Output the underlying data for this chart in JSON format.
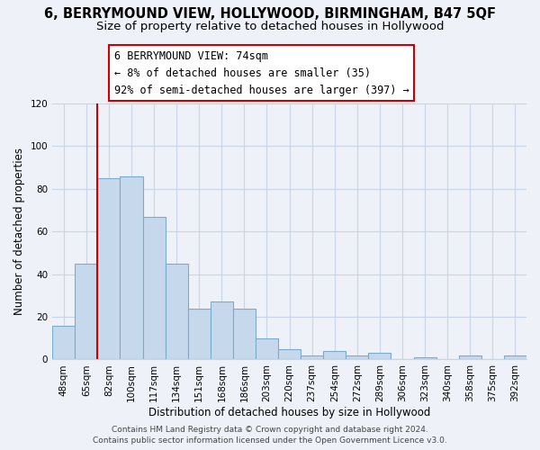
{
  "title": "6, BERRYMOUND VIEW, HOLLYWOOD, BIRMINGHAM, B47 5QF",
  "subtitle": "Size of property relative to detached houses in Hollywood",
  "xlabel": "Distribution of detached houses by size in Hollywood",
  "ylabel": "Number of detached properties",
  "categories": [
    "48sqm",
    "65sqm",
    "82sqm",
    "100sqm",
    "117sqm",
    "134sqm",
    "151sqm",
    "168sqm",
    "186sqm",
    "203sqm",
    "220sqm",
    "237sqm",
    "254sqm",
    "272sqm",
    "289sqm",
    "306sqm",
    "323sqm",
    "340sqm",
    "358sqm",
    "375sqm",
    "392sqm"
  ],
  "values": [
    16,
    45,
    85,
    86,
    67,
    45,
    24,
    27,
    24,
    10,
    5,
    2,
    4,
    2,
    3,
    0,
    1,
    0,
    2,
    0,
    2
  ],
  "bar_color": "#c6d9ec",
  "bar_edge_color": "#7aabcc",
  "reference_line_color": "#cc0000",
  "annotation_line1": "6 BERRYMOUND VIEW: 74sqm",
  "annotation_line2": "← 8% of detached houses are smaller (35)",
  "annotation_line3": "92% of semi-detached houses are larger (397) →",
  "ylim": [
    0,
    120
  ],
  "yticks": [
    0,
    20,
    40,
    60,
    80,
    100,
    120
  ],
  "footer_line1": "Contains HM Land Registry data © Crown copyright and database right 2024.",
  "footer_line2": "Contains public sector information licensed under the Open Government Licence v3.0.",
  "background_color": "#eef2f8",
  "grid_color": "#c8d4e8",
  "title_fontsize": 10.5,
  "subtitle_fontsize": 9.5,
  "xlabel_fontsize": 8.5,
  "ylabel_fontsize": 8.5,
  "tick_fontsize": 7.5,
  "annotation_fontsize": 8.5,
  "footer_fontsize": 6.5
}
